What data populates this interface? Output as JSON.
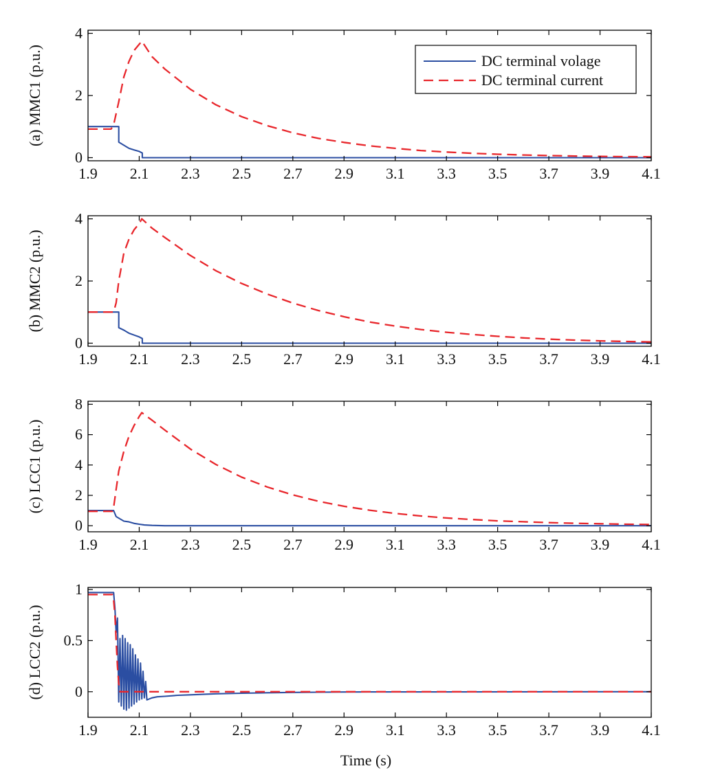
{
  "figure": {
    "xlabel": "Time (s)",
    "legend": {
      "location": "top-right",
      "entries": [
        "DC terminal volage",
        "DC terminal current"
      ]
    }
  },
  "series_styles": [
    {
      "name": "DC terminal volage",
      "color": "#2b4ea2",
      "dash": "solid"
    },
    {
      "name": "DC terminal current",
      "color": "#e8262b",
      "dash": "dashed"
    }
  ],
  "chart_data": [
    {
      "type": "line",
      "id": "a",
      "ylabel": "(a) MMC1 (p.u.)",
      "xlim": [
        1.9,
        4.1
      ],
      "ylim": [
        -0.1,
        4.1
      ],
      "xticks": [
        "1.9",
        "2.1",
        "2.3",
        "2.5",
        "2.7",
        "2.9",
        "3.1",
        "3.3",
        "3.5",
        "3.7",
        "3.9",
        "4.1"
      ],
      "yticks": [
        "0",
        "2",
        "4"
      ],
      "series": [
        {
          "name": "DC terminal volage",
          "x": [
            1.9,
            2.02,
            2.02,
            2.04,
            2.06,
            2.08,
            2.1,
            2.112,
            2.112,
            2.5,
            3.0,
            4.1
          ],
          "y": [
            1.0,
            1.0,
            0.5,
            0.4,
            0.3,
            0.25,
            0.2,
            0.15,
            0.0,
            0.0,
            0.0,
            0.0
          ]
        },
        {
          "name": "DC terminal current",
          "x": [
            1.9,
            1.99,
            2.0,
            2.02,
            2.04,
            2.06,
            2.08,
            2.1,
            2.11,
            2.15,
            2.2,
            2.3,
            2.4,
            2.5,
            2.6,
            2.7,
            2.8,
            2.9,
            3.0,
            3.1,
            3.2,
            3.3,
            3.4,
            3.5,
            3.6,
            3.7,
            3.8,
            3.9,
            4.0,
            4.1
          ],
          "y": [
            0.92,
            0.92,
            1.05,
            1.8,
            2.6,
            3.1,
            3.45,
            3.65,
            3.75,
            3.25,
            2.85,
            2.2,
            1.7,
            1.32,
            1.03,
            0.8,
            0.62,
            0.49,
            0.38,
            0.3,
            0.23,
            0.18,
            0.14,
            0.11,
            0.085,
            0.067,
            0.052,
            0.04,
            0.032,
            0.025
          ]
        }
      ]
    },
    {
      "type": "line",
      "id": "b",
      "ylabel": "(b) MMC2 (p.u.)",
      "xlim": [
        1.9,
        4.1
      ],
      "ylim": [
        -0.1,
        4.1
      ],
      "xticks": [
        "1.9",
        "2.1",
        "2.3",
        "2.5",
        "2.7",
        "2.9",
        "3.1",
        "3.3",
        "3.5",
        "3.7",
        "3.9",
        "4.1"
      ],
      "yticks": [
        "0",
        "2",
        "4"
      ],
      "series": [
        {
          "name": "DC terminal volage",
          "x": [
            1.9,
            2.02,
            2.02,
            2.04,
            2.06,
            2.08,
            2.1,
            2.112,
            2.112,
            2.5,
            3.0,
            4.1
          ],
          "y": [
            1.0,
            1.0,
            0.5,
            0.42,
            0.32,
            0.26,
            0.2,
            0.15,
            0.0,
            0.0,
            0.0,
            0.0
          ]
        },
        {
          "name": "DC terminal current",
          "x": [
            1.9,
            2.0,
            2.01,
            2.02,
            2.04,
            2.06,
            2.08,
            2.1,
            2.11,
            2.15,
            2.2,
            2.3,
            2.4,
            2.5,
            2.6,
            2.7,
            2.8,
            2.9,
            3.0,
            3.1,
            3.2,
            3.3,
            3.4,
            3.5,
            3.6,
            3.7,
            3.8,
            3.9,
            4.0,
            4.1
          ],
          "y": [
            1.0,
            1.0,
            1.3,
            2.0,
            2.9,
            3.35,
            3.65,
            3.85,
            4.0,
            3.7,
            3.4,
            2.82,
            2.33,
            1.92,
            1.58,
            1.29,
            1.05,
            0.85,
            0.68,
            0.55,
            0.44,
            0.35,
            0.28,
            0.22,
            0.17,
            0.13,
            0.1,
            0.075,
            0.055,
            0.04
          ]
        }
      ]
    },
    {
      "type": "line",
      "id": "c",
      "ylabel": "(c) LCC1 (p.u.)",
      "xlim": [
        1.9,
        4.1
      ],
      "ylim": [
        -0.4,
        8.2
      ],
      "xticks": [
        "1.9",
        "2.1",
        "2.3",
        "2.5",
        "2.7",
        "2.9",
        "3.1",
        "3.3",
        "3.5",
        "3.7",
        "3.9",
        "4.1"
      ],
      "yticks": [
        "0",
        "2",
        "4",
        "6",
        "8"
      ],
      "series": [
        {
          "name": "DC terminal volage",
          "x": [
            1.9,
            2.0,
            2.01,
            2.02,
            2.04,
            2.06,
            2.08,
            2.1,
            2.12,
            2.15,
            2.2,
            2.5,
            4.1
          ],
          "y": [
            1.0,
            1.0,
            0.6,
            0.5,
            0.3,
            0.25,
            0.15,
            0.1,
            0.05,
            0.02,
            0.0,
            0.0,
            0.0
          ]
        },
        {
          "name": "DC terminal current",
          "x": [
            1.9,
            1.995,
            2.0,
            2.01,
            2.02,
            2.04,
            2.06,
            2.08,
            2.1,
            2.11,
            2.15,
            2.2,
            2.3,
            2.4,
            2.5,
            2.6,
            2.7,
            2.8,
            2.9,
            3.0,
            3.1,
            3.2,
            3.3,
            3.4,
            3.5,
            3.6,
            3.7,
            3.8,
            3.9,
            4.0,
            4.1
          ],
          "y": [
            0.95,
            0.95,
            1.2,
            2.4,
            3.6,
            4.9,
            5.9,
            6.6,
            7.2,
            7.45,
            6.95,
            6.3,
            5.05,
            4.03,
            3.2,
            2.55,
            2.03,
            1.61,
            1.28,
            1.02,
            0.81,
            0.64,
            0.51,
            0.41,
            0.32,
            0.26,
            0.2,
            0.16,
            0.13,
            0.1,
            0.08
          ]
        }
      ]
    },
    {
      "type": "line",
      "id": "d",
      "ylabel": "(d) LCC2 (p.u.)",
      "xlim": [
        1.9,
        4.1
      ],
      "ylim": [
        -0.25,
        1.02
      ],
      "xticks": [
        "1.9",
        "2.1",
        "2.3",
        "2.5",
        "2.7",
        "2.9",
        "3.1",
        "3.3",
        "3.5",
        "3.7",
        "3.9",
        "4.1"
      ],
      "yticks": [
        "0",
        "0.5",
        "1"
      ],
      "series": [
        {
          "name": "DC terminal volage",
          "x": [
            1.9,
            2.0,
            2.005,
            2.01,
            2.015,
            2.02,
            2.025,
            2.03,
            2.035,
            2.04,
            2.045,
            2.05,
            2.055,
            2.06,
            2.065,
            2.07,
            2.075,
            2.08,
            2.085,
            2.09,
            2.095,
            2.1,
            2.105,
            2.11,
            2.115,
            2.12,
            2.125,
            2.13,
            2.14,
            2.15,
            2.17,
            2.2,
            2.25,
            2.3,
            2.4,
            2.5,
            2.6,
            2.7,
            2.8,
            2.9,
            3.0,
            4.1
          ],
          "y": [
            0.97,
            0.97,
            0.82,
            0.58,
            0.72,
            -0.1,
            0.52,
            -0.14,
            0.55,
            -0.17,
            0.52,
            -0.18,
            0.48,
            -0.16,
            0.46,
            -0.14,
            0.42,
            -0.12,
            0.36,
            -0.1,
            0.32,
            -0.08,
            0.28,
            -0.07,
            0.2,
            -0.06,
            0.1,
            -0.08,
            -0.07,
            -0.06,
            -0.05,
            -0.045,
            -0.035,
            -0.03,
            -0.02,
            -0.015,
            -0.01,
            -0.007,
            -0.005,
            -0.003,
            -0.002,
            0.0
          ]
        },
        {
          "name": "DC terminal current",
          "x": [
            1.9,
            1.995,
            2.0,
            2.005,
            2.01,
            2.015,
            2.02,
            2.025,
            2.03,
            2.04,
            2.06,
            2.1,
            2.5,
            4.1
          ],
          "y": [
            0.95,
            0.95,
            0.9,
            0.75,
            0.5,
            0.25,
            0.08,
            0.0,
            0.0,
            0.0,
            0.0,
            0.0,
            0.0,
            0.0
          ]
        }
      ]
    }
  ]
}
